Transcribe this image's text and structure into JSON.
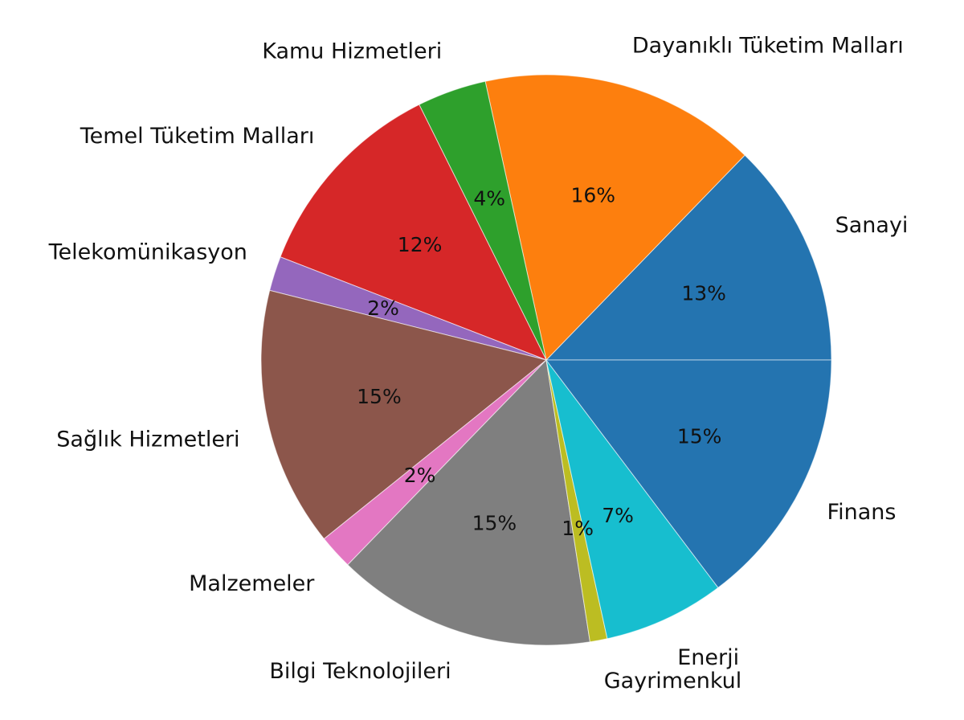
{
  "chart_data": {
    "type": "pie",
    "title": "",
    "start_angle": 0,
    "direction": "counterclockwise",
    "legend": "none",
    "slices": [
      {
        "label": "Sanayi",
        "value": 13,
        "pct_label": "13%",
        "color": "#2474b0"
      },
      {
        "label": "Dayanıklı Tüketim Malları",
        "value": 16,
        "pct_label": "16%",
        "color": "#fd7f0e"
      },
      {
        "label": "Kamu Hizmetleri",
        "value": 4,
        "pct_label": "4%",
        "color": "#2ea02c"
      },
      {
        "label": "Temel Tüketim Malları",
        "value": 12,
        "pct_label": "12%",
        "color": "#d62728"
      },
      {
        "label": "Telekomünikasyon",
        "value": 2,
        "pct_label": "2%",
        "color": "#9467bd"
      },
      {
        "label": "Sağlık Hizmetleri",
        "value": 15,
        "pct_label": "15%",
        "color": "#8c564b"
      },
      {
        "label": "Malzemeler",
        "value": 2,
        "pct_label": "2%",
        "color": "#e377c2"
      },
      {
        "label": "Bilgi Teknolojileri",
        "value": 15,
        "pct_label": "15%",
        "color": "#7f7f7f"
      },
      {
        "label": "Gayrimenkul",
        "value": 1,
        "pct_label": "1%",
        "color": "#bcbd22"
      },
      {
        "label": "Enerji",
        "value": 7,
        "pct_label": "7%",
        "color": "#17becf"
      },
      {
        "label": "Finans",
        "value": 15,
        "pct_label": "15%",
        "color": "#2474b0"
      }
    ]
  }
}
